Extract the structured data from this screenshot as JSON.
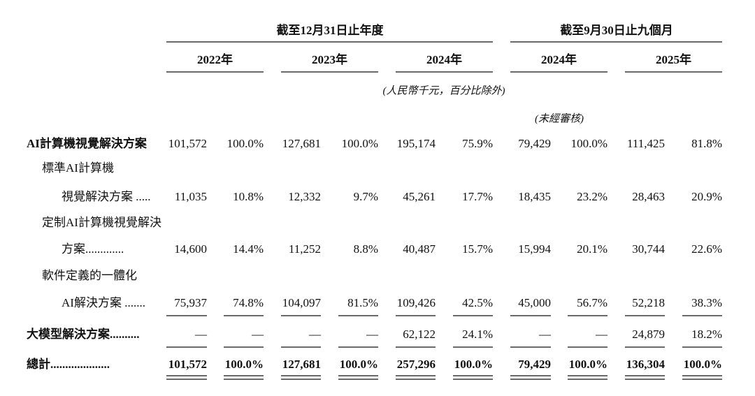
{
  "header": {
    "groups": [
      "截至12月31日止年度",
      "截至9月30日止九個月"
    ],
    "years": [
      "2022年",
      "2023年",
      "2024年",
      "2024年",
      "2025年"
    ],
    "unit_note": "(人民幣千元，百分比除外)",
    "audit_note": "(未經審核)"
  },
  "table": {
    "rows": [
      {
        "label": [
          "AI計算機視覺解決方案"
        ],
        "bold": true,
        "cells": [
          "101,572",
          "100.0%",
          "127,681",
          "100.0%",
          "195,174",
          "75.9%",
          "79,429",
          "100.0%",
          "111,425",
          "81.8%"
        ]
      },
      {
        "label": [
          "標準AI計算機",
          "視覺解決方案 ....."
        ],
        "cells": [
          "11,035",
          "10.8%",
          "12,332",
          "9.7%",
          "45,261",
          "17.7%",
          "18,435",
          "23.2%",
          "28,463",
          "20.9%"
        ]
      },
      {
        "label": [
          "定制AI計算機視覺解決",
          "方案............."
        ],
        "cells": [
          "14,600",
          "14.4%",
          "11,252",
          "8.8%",
          "40,487",
          "15.7%",
          "15,994",
          "20.1%",
          "30,744",
          "22.6%"
        ]
      },
      {
        "label": [
          "軟件定義的一體化",
          "AI解決方案 ......."
        ],
        "cells": [
          "75,937",
          "74.8%",
          "104,097",
          "81.5%",
          "109,426",
          "42.5%",
          "45,000",
          "56.7%",
          "52,218",
          "38.3%"
        ]
      },
      {
        "label": [
          "大模型解決方案.........."
        ],
        "bold": true,
        "cells": [
          "—",
          "—",
          "—",
          "—",
          "62,122",
          "24.1%",
          "—",
          "—",
          "24,879",
          "18.2%"
        ]
      },
      {
        "label": [
          "總計...................."
        ],
        "bold": true,
        "cells": [
          "101,572",
          "100.0%",
          "127,681",
          "100.0%",
          "257,296",
          "100.0%",
          "79,429",
          "100.0%",
          "136,304",
          "100.0%"
        ]
      }
    ]
  }
}
